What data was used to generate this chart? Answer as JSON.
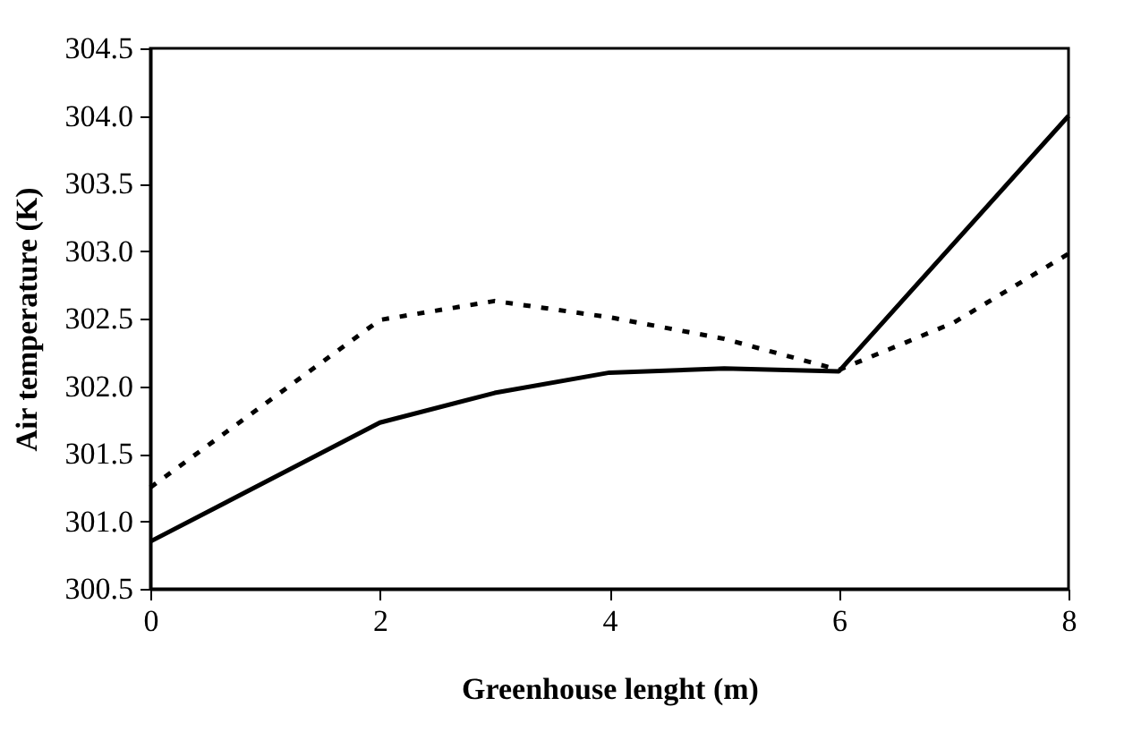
{
  "chart_data": {
    "type": "line",
    "xlabel": "Greenhouse lenght (m)",
    "ylabel": "Air temperature (K)",
    "xlim": [
      0,
      8
    ],
    "xticks": [
      0,
      2,
      4,
      6,
      8
    ],
    "ylim": [
      300.5,
      304.5
    ],
    "yticks": [
      {
        "value": 300.5,
        "label": "300.5"
      },
      {
        "value": 301,
        "label": "301.0"
      },
      {
        "value": 301.5,
        "label": "301.5"
      },
      {
        "value": 302,
        "label": "302.0"
      },
      {
        "value": 302.5,
        "label": "302.5"
      },
      {
        "value": 303,
        "label": "303.0"
      },
      {
        "value": 303.5,
        "label": "303.5"
      },
      {
        "value": 304,
        "label": "304.0"
      },
      {
        "value": 304.5,
        "label": "304.5"
      }
    ],
    "grid": false,
    "marker": "none",
    "series": [
      {
        "color": "#000000",
        "line_style": "solid",
        "x": [
          0,
          2,
          3,
          4,
          5,
          6,
          8
        ],
        "values": [
          300.85,
          301.73,
          301.95,
          302.1,
          302.13,
          302.11,
          304.0
        ]
      },
      {
        "color": "#000000",
        "line_style": "dotted",
        "x": [
          0,
          2,
          3,
          4,
          5,
          6,
          7,
          8
        ],
        "values": [
          301.25,
          302.49,
          302.63,
          302.51,
          302.35,
          302.12,
          302.47,
          302.98
        ]
      }
    ]
  }
}
